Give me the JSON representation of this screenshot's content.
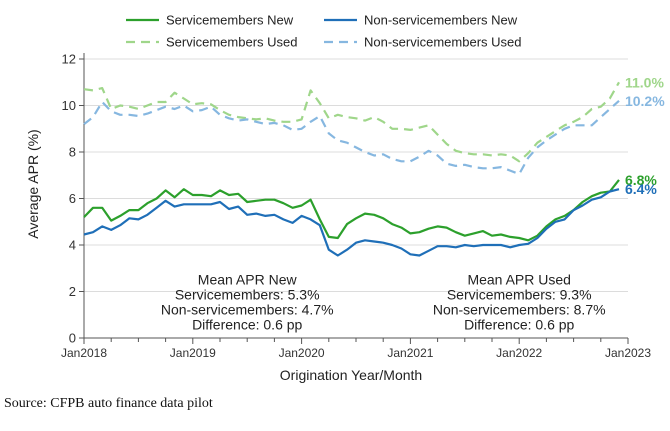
{
  "chart_data": {
    "type": "line",
    "xlabel": "Origination Year/Month",
    "ylabel": "Average APR (%)",
    "ylim": [
      0,
      12
    ],
    "xlim": [
      2018.0,
      2023.0
    ],
    "yticks": [
      0,
      2,
      4,
      6,
      8,
      10,
      12
    ],
    "xticks": [
      {
        "label": "Jan2018",
        "value": 2018.0
      },
      {
        "label": "Jan2019",
        "value": 2019.0
      },
      {
        "label": "Jan2020",
        "value": 2020.0
      },
      {
        "label": "Jan2021",
        "value": 2021.0
      },
      {
        "label": "Jan2022",
        "value": 2022.0
      },
      {
        "label": "Jan2023",
        "value": 2023.0
      }
    ],
    "grid": "horizontal",
    "legend_position": "top",
    "series": [
      {
        "name": "Servicemembers New",
        "style": "solid",
        "color": "#2ca02c",
        "end_label": "6.8%",
        "points": [
          [
            2018.0,
            5.2
          ],
          [
            2018.083,
            5.6
          ],
          [
            2018.167,
            5.6
          ],
          [
            2018.25,
            5.05
          ],
          [
            2018.333,
            5.25
          ],
          [
            2018.417,
            5.5
          ],
          [
            2018.5,
            5.5
          ],
          [
            2018.583,
            5.8
          ],
          [
            2018.667,
            6.0
          ],
          [
            2018.75,
            6.35
          ],
          [
            2018.833,
            6.05
          ],
          [
            2018.917,
            6.4
          ],
          [
            2019.0,
            6.15
          ],
          [
            2019.083,
            6.15
          ],
          [
            2019.167,
            6.1
          ],
          [
            2019.25,
            6.35
          ],
          [
            2019.333,
            6.15
          ],
          [
            2019.417,
            6.2
          ],
          [
            2019.5,
            5.85
          ],
          [
            2019.583,
            5.9
          ],
          [
            2019.667,
            5.95
          ],
          [
            2019.75,
            5.95
          ],
          [
            2019.833,
            5.8
          ],
          [
            2019.917,
            5.6
          ],
          [
            2020.0,
            5.7
          ],
          [
            2020.083,
            5.95
          ],
          [
            2020.167,
            5.1
          ],
          [
            2020.25,
            4.35
          ],
          [
            2020.333,
            4.3
          ],
          [
            2020.417,
            4.9
          ],
          [
            2020.5,
            5.15
          ],
          [
            2020.583,
            5.35
          ],
          [
            2020.667,
            5.3
          ],
          [
            2020.75,
            5.15
          ],
          [
            2020.833,
            4.9
          ],
          [
            2020.917,
            4.75
          ],
          [
            2021.0,
            4.5
          ],
          [
            2021.083,
            4.55
          ],
          [
            2021.167,
            4.7
          ],
          [
            2021.25,
            4.8
          ],
          [
            2021.333,
            4.75
          ],
          [
            2021.417,
            4.55
          ],
          [
            2021.5,
            4.4
          ],
          [
            2021.583,
            4.5
          ],
          [
            2021.667,
            4.6
          ],
          [
            2021.75,
            4.4
          ],
          [
            2021.833,
            4.45
          ],
          [
            2021.917,
            4.35
          ],
          [
            2022.0,
            4.3
          ],
          [
            2022.083,
            4.2
          ],
          [
            2022.167,
            4.4
          ],
          [
            2022.25,
            4.8
          ],
          [
            2022.333,
            5.1
          ],
          [
            2022.417,
            5.25
          ],
          [
            2022.5,
            5.5
          ],
          [
            2022.583,
            5.85
          ],
          [
            2022.667,
            6.1
          ],
          [
            2022.75,
            6.25
          ],
          [
            2022.833,
            6.3
          ],
          [
            2022.917,
            6.8
          ]
        ]
      },
      {
        "name": "Non-servicemembers New",
        "style": "solid",
        "color": "#1f6fb8",
        "end_label": "6.4%",
        "points": [
          [
            2018.0,
            4.45
          ],
          [
            2018.083,
            4.55
          ],
          [
            2018.167,
            4.8
          ],
          [
            2018.25,
            4.65
          ],
          [
            2018.333,
            4.85
          ],
          [
            2018.417,
            5.15
          ],
          [
            2018.5,
            5.1
          ],
          [
            2018.583,
            5.3
          ],
          [
            2018.667,
            5.6
          ],
          [
            2018.75,
            5.9
          ],
          [
            2018.833,
            5.65
          ],
          [
            2018.917,
            5.75
          ],
          [
            2019.0,
            5.75
          ],
          [
            2019.083,
            5.75
          ],
          [
            2019.167,
            5.75
          ],
          [
            2019.25,
            5.85
          ],
          [
            2019.333,
            5.55
          ],
          [
            2019.417,
            5.65
          ],
          [
            2019.5,
            5.3
          ],
          [
            2019.583,
            5.35
          ],
          [
            2019.667,
            5.25
          ],
          [
            2019.75,
            5.3
          ],
          [
            2019.833,
            5.1
          ],
          [
            2019.917,
            4.95
          ],
          [
            2020.0,
            5.25
          ],
          [
            2020.083,
            5.1
          ],
          [
            2020.167,
            4.85
          ],
          [
            2020.25,
            3.8
          ],
          [
            2020.333,
            3.55
          ],
          [
            2020.417,
            3.8
          ],
          [
            2020.5,
            4.1
          ],
          [
            2020.583,
            4.2
          ],
          [
            2020.667,
            4.15
          ],
          [
            2020.75,
            4.1
          ],
          [
            2020.833,
            4.0
          ],
          [
            2020.917,
            3.85
          ],
          [
            2021.0,
            3.6
          ],
          [
            2021.083,
            3.55
          ],
          [
            2021.167,
            3.75
          ],
          [
            2021.25,
            3.95
          ],
          [
            2021.333,
            3.95
          ],
          [
            2021.417,
            3.9
          ],
          [
            2021.5,
            4.0
          ],
          [
            2021.583,
            3.95
          ],
          [
            2021.667,
            4.0
          ],
          [
            2021.75,
            4.0
          ],
          [
            2021.833,
            4.0
          ],
          [
            2021.917,
            3.9
          ],
          [
            2022.0,
            4.0
          ],
          [
            2022.083,
            4.05
          ],
          [
            2022.167,
            4.3
          ],
          [
            2022.25,
            4.7
          ],
          [
            2022.333,
            5.0
          ],
          [
            2022.417,
            5.1
          ],
          [
            2022.5,
            5.5
          ],
          [
            2022.583,
            5.7
          ],
          [
            2022.667,
            5.95
          ],
          [
            2022.75,
            6.05
          ],
          [
            2022.833,
            6.3
          ],
          [
            2022.917,
            6.4
          ]
        ]
      },
      {
        "name": "Servicemembers Used",
        "style": "dashed",
        "color": "#9fd68a",
        "end_label": "11.0%",
        "points": [
          [
            2018.0,
            10.7
          ],
          [
            2018.083,
            10.65
          ],
          [
            2018.167,
            10.75
          ],
          [
            2018.25,
            9.85
          ],
          [
            2018.333,
            10.0
          ],
          [
            2018.417,
            9.95
          ],
          [
            2018.5,
            9.85
          ],
          [
            2018.583,
            10.0
          ],
          [
            2018.667,
            10.15
          ],
          [
            2018.75,
            10.15
          ],
          [
            2018.833,
            10.55
          ],
          [
            2018.917,
            10.3
          ],
          [
            2019.0,
            10.05
          ],
          [
            2019.083,
            10.1
          ],
          [
            2019.167,
            10.05
          ],
          [
            2019.25,
            9.8
          ],
          [
            2019.333,
            9.6
          ],
          [
            2019.417,
            9.5
          ],
          [
            2019.5,
            9.45
          ],
          [
            2019.583,
            9.4
          ],
          [
            2019.667,
            9.45
          ],
          [
            2019.75,
            9.35
          ],
          [
            2019.833,
            9.3
          ],
          [
            2019.917,
            9.3
          ],
          [
            2020.0,
            9.4
          ],
          [
            2020.083,
            10.65
          ],
          [
            2020.167,
            10.1
          ],
          [
            2020.25,
            9.45
          ],
          [
            2020.333,
            9.6
          ],
          [
            2020.417,
            9.5
          ],
          [
            2020.5,
            9.45
          ],
          [
            2020.583,
            9.35
          ],
          [
            2020.667,
            9.5
          ],
          [
            2020.75,
            9.3
          ],
          [
            2020.833,
            9.0
          ],
          [
            2020.917,
            9.0
          ],
          [
            2021.0,
            8.95
          ],
          [
            2021.083,
            9.05
          ],
          [
            2021.167,
            9.15
          ],
          [
            2021.25,
            8.75
          ],
          [
            2021.333,
            8.35
          ],
          [
            2021.417,
            8.05
          ],
          [
            2021.5,
            7.95
          ],
          [
            2021.583,
            7.9
          ],
          [
            2021.667,
            7.9
          ],
          [
            2021.75,
            7.85
          ],
          [
            2021.833,
            7.9
          ],
          [
            2021.917,
            7.85
          ],
          [
            2022.0,
            7.6
          ],
          [
            2022.083,
            7.95
          ],
          [
            2022.167,
            8.4
          ],
          [
            2022.25,
            8.65
          ],
          [
            2022.333,
            8.9
          ],
          [
            2022.417,
            9.15
          ],
          [
            2022.5,
            9.3
          ],
          [
            2022.583,
            9.5
          ],
          [
            2022.667,
            9.85
          ],
          [
            2022.75,
            9.95
          ],
          [
            2022.833,
            10.3
          ],
          [
            2022.917,
            11.0
          ]
        ]
      },
      {
        "name": "Non-servicemembers Used",
        "style": "dashed",
        "color": "#86b7e0",
        "end_label": "10.2%",
        "points": [
          [
            2018.0,
            9.2
          ],
          [
            2018.083,
            9.5
          ],
          [
            2018.167,
            10.15
          ],
          [
            2018.25,
            9.75
          ],
          [
            2018.333,
            9.6
          ],
          [
            2018.417,
            9.6
          ],
          [
            2018.5,
            9.55
          ],
          [
            2018.583,
            9.65
          ],
          [
            2018.667,
            9.8
          ],
          [
            2018.75,
            9.95
          ],
          [
            2018.833,
            9.85
          ],
          [
            2018.917,
            10.0
          ],
          [
            2019.0,
            9.75
          ],
          [
            2019.083,
            9.8
          ],
          [
            2019.167,
            9.95
          ],
          [
            2019.25,
            9.6
          ],
          [
            2019.333,
            9.45
          ],
          [
            2019.417,
            9.35
          ],
          [
            2019.5,
            9.4
          ],
          [
            2019.583,
            9.3
          ],
          [
            2019.667,
            9.2
          ],
          [
            2019.75,
            9.25
          ],
          [
            2019.833,
            9.15
          ],
          [
            2019.917,
            8.95
          ],
          [
            2020.0,
            9.0
          ],
          [
            2020.083,
            9.3
          ],
          [
            2020.167,
            9.55
          ],
          [
            2020.25,
            8.8
          ],
          [
            2020.333,
            8.5
          ],
          [
            2020.417,
            8.4
          ],
          [
            2020.5,
            8.2
          ],
          [
            2020.583,
            8.0
          ],
          [
            2020.667,
            7.85
          ],
          [
            2020.75,
            7.9
          ],
          [
            2020.833,
            7.7
          ],
          [
            2020.917,
            7.6
          ],
          [
            2021.0,
            7.6
          ],
          [
            2021.083,
            7.8
          ],
          [
            2021.167,
            8.05
          ],
          [
            2021.25,
            7.85
          ],
          [
            2021.333,
            7.5
          ],
          [
            2021.417,
            7.4
          ],
          [
            2021.5,
            7.45
          ],
          [
            2021.583,
            7.35
          ],
          [
            2021.667,
            7.3
          ],
          [
            2021.75,
            7.3
          ],
          [
            2021.833,
            7.35
          ],
          [
            2021.917,
            7.2
          ],
          [
            2022.0,
            7.05
          ],
          [
            2022.083,
            7.75
          ],
          [
            2022.167,
            8.2
          ],
          [
            2022.25,
            8.5
          ],
          [
            2022.333,
            8.75
          ],
          [
            2022.417,
            9.0
          ],
          [
            2022.5,
            9.15
          ],
          [
            2022.583,
            9.15
          ],
          [
            2022.667,
            9.15
          ],
          [
            2022.75,
            9.5
          ],
          [
            2022.833,
            9.85
          ],
          [
            2022.917,
            10.2
          ]
        ]
      }
    ],
    "annotations": [
      {
        "x": 2019.5,
        "y": 1.7,
        "lines": [
          "Mean APR New",
          "Servicemembers: 5.3%",
          "Non-servicemembers: 4.7%",
          "Difference: 0.6 pp"
        ]
      },
      {
        "x": 2022.0,
        "y": 1.7,
        "lines": [
          "Mean APR Used",
          "Servicemembers: 9.3%",
          "Non-servicemembers: 8.7%",
          "Difference: 0.6 pp"
        ]
      }
    ]
  },
  "source": "Source: CFPB auto finance data pilot"
}
